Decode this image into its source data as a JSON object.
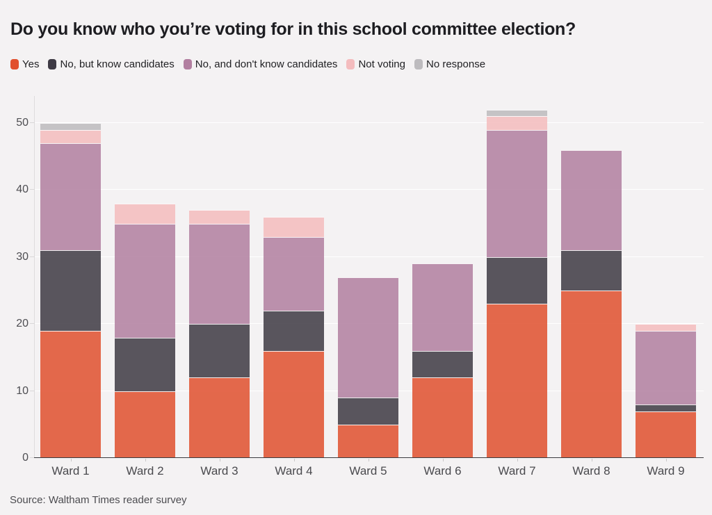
{
  "header": {
    "title": "Do you know who you’re voting for in this school committee election?"
  },
  "legend": {
    "items": [
      {
        "label": "Yes",
        "color": "#e1502e"
      },
      {
        "label": "No, but know candidates",
        "color": "#3e3a44"
      },
      {
        "label": "No, and don't know candidates",
        "color": "#b27fa0"
      },
      {
        "label": "Not voting",
        "color": "#f4bcbe"
      },
      {
        "label": "No response",
        "color": "#bdbbbe"
      }
    ]
  },
  "chart_data": {
    "type": "bar",
    "stacked": true,
    "title": "Do you know who you’re voting for in this school committee election?",
    "categories": [
      "Ward 1",
      "Ward 2",
      "Ward 3",
      "Ward 4",
      "Ward 5",
      "Ward 6",
      "Ward 7",
      "Ward 8",
      "Ward 9"
    ],
    "series": [
      {
        "name": "Yes",
        "color": "#e1502e",
        "values": [
          19,
          10,
          12,
          16,
          5,
          12,
          23,
          25,
          7
        ]
      },
      {
        "name": "No, but know candidates",
        "color": "#3e3a44",
        "values": [
          12,
          8,
          8,
          6,
          4,
          4,
          7,
          6,
          1
        ]
      },
      {
        "name": "No, and don't know candidates",
        "color": "#b27fa0",
        "values": [
          16,
          17,
          15,
          11,
          18,
          13,
          19,
          15,
          11
        ]
      },
      {
        "name": "Not voting",
        "color": "#f4bcbe",
        "values": [
          2,
          3,
          2,
          3,
          0,
          0,
          2,
          0,
          1
        ]
      },
      {
        "name": "No response",
        "color": "#bdbbbe",
        "values": [
          1,
          0,
          0,
          0,
          0,
          0,
          1,
          0,
          0
        ]
      }
    ],
    "totals": [
      50,
      38,
      37,
      36,
      27,
      29,
      52,
      46,
      20
    ],
    "xlabel": "",
    "ylabel": "",
    "yticks": [
      0,
      10,
      20,
      30,
      40,
      50
    ],
    "ylim": [
      0,
      54
    ],
    "grid": "horizontal",
    "legend_position": "top"
  },
  "footer": {
    "source": "Source: Waltham Times reader survey"
  }
}
